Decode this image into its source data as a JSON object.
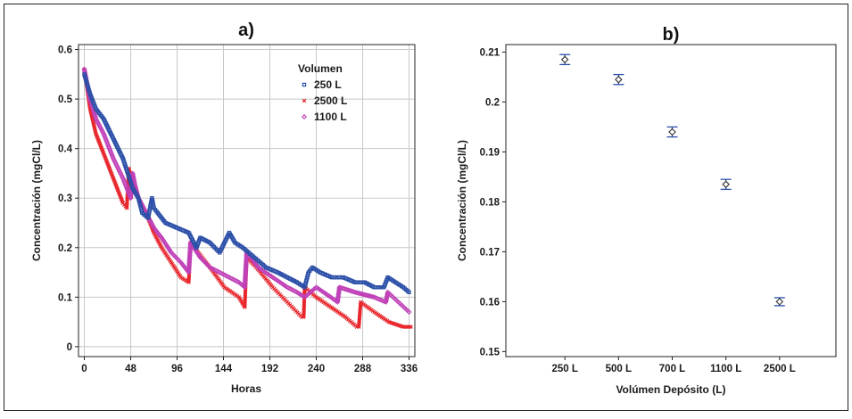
{
  "chart_data": [
    {
      "type": "scatter",
      "panel_title": "a)",
      "xlabel": "Horas",
      "ylabel": "Concentración (mgCl/L)",
      "xlim": [
        -6,
        342
      ],
      "ylim": [
        -0.02,
        0.61
      ],
      "xticks": [
        0,
        48,
        96,
        144,
        192,
        240,
        288,
        336
      ],
      "yticks": [
        0,
        0.1,
        0.2,
        0.3,
        0.4,
        0.5,
        0.6
      ],
      "ytick_labels": [
        "0",
        "0.1",
        "0.2",
        "0.3",
        "0.4",
        "0.5",
        "0.6"
      ],
      "grid": true,
      "legend_title": "Volumen",
      "legend_position": "top-right",
      "series": [
        {
          "name": "250 L",
          "color": "#2b4fa8",
          "marker": "square",
          "x": [
            0,
            6,
            12,
            20,
            30,
            40,
            50,
            56,
            60,
            66,
            70,
            72,
            76,
            84,
            96,
            108,
            116,
            120,
            130,
            140,
            150,
            156,
            164,
            176,
            188,
            200,
            210,
            220,
            228,
            232,
            236,
            244,
            256,
            268,
            280,
            290,
            300,
            310,
            314,
            322,
            330,
            336
          ],
          "y": [
            0.55,
            0.51,
            0.48,
            0.46,
            0.42,
            0.38,
            0.32,
            0.3,
            0.27,
            0.26,
            0.3,
            0.28,
            0.27,
            0.25,
            0.24,
            0.23,
            0.2,
            0.22,
            0.21,
            0.19,
            0.23,
            0.21,
            0.2,
            0.18,
            0.16,
            0.15,
            0.14,
            0.13,
            0.12,
            0.15,
            0.16,
            0.15,
            0.14,
            0.14,
            0.13,
            0.13,
            0.12,
            0.12,
            0.14,
            0.13,
            0.12,
            0.11
          ]
        },
        {
          "name": "2500 L",
          "color": "#e8262c",
          "marker": "x",
          "x": [
            0,
            6,
            12,
            20,
            30,
            40,
            44,
            46,
            50,
            56,
            64,
            72,
            80,
            90,
            100,
            108,
            110,
            118,
            130,
            145,
            160,
            166,
            168,
            178,
            195,
            210,
            225,
            227,
            228,
            240,
            255,
            270,
            282,
            284,
            286,
            300,
            315,
            330,
            338
          ],
          "y": [
            0.56,
            0.48,
            0.43,
            0.39,
            0.34,
            0.29,
            0.28,
            0.36,
            0.33,
            0.3,
            0.27,
            0.23,
            0.2,
            0.17,
            0.14,
            0.13,
            0.21,
            0.19,
            0.16,
            0.12,
            0.1,
            0.08,
            0.18,
            0.16,
            0.12,
            0.09,
            0.06,
            0.06,
            0.12,
            0.1,
            0.08,
            0.06,
            0.04,
            0.04,
            0.09,
            0.07,
            0.05,
            0.04,
            0.04
          ]
        },
        {
          "name": "1100 L",
          "color": "#c040b8",
          "marker": "diamond",
          "x": [
            0,
            6,
            12,
            20,
            30,
            40,
            48,
            50,
            52,
            56,
            64,
            72,
            80,
            90,
            100,
            108,
            110,
            120,
            130,
            140,
            160,
            166,
            168,
            180,
            195,
            210,
            220,
            228,
            240,
            255,
            262,
            264,
            280,
            300,
            312,
            314,
            325,
            336
          ],
          "y": [
            0.56,
            0.5,
            0.46,
            0.43,
            0.38,
            0.34,
            0.3,
            0.35,
            0.33,
            0.3,
            0.27,
            0.24,
            0.22,
            0.19,
            0.17,
            0.15,
            0.21,
            0.18,
            0.16,
            0.15,
            0.13,
            0.12,
            0.19,
            0.16,
            0.14,
            0.12,
            0.11,
            0.1,
            0.12,
            0.1,
            0.09,
            0.12,
            0.11,
            0.1,
            0.09,
            0.11,
            0.09,
            0.07
          ]
        }
      ]
    },
    {
      "type": "errorbar",
      "panel_title": "b)",
      "xlabel": "Volúmen Depósito (L)",
      "ylabel": "Concentración (mgCl/L)",
      "ylim": [
        0.149,
        0.2115
      ],
      "yticks": [
        0.15,
        0.16,
        0.17,
        0.18,
        0.19,
        0.2,
        0.21
      ],
      "ytick_labels": [
        "0.15",
        "0.16",
        "0.17",
        "0.18",
        "0.19",
        "0.2",
        "0.21"
      ],
      "grid": false,
      "categories": [
        "250 L",
        "500 L",
        "700 L",
        "1100 L",
        "2500 L"
      ],
      "values": [
        0.2085,
        0.2045,
        0.194,
        0.1835,
        0.16
      ],
      "errors": [
        0.001,
        0.001,
        0.001,
        0.001,
        0.0008
      ],
      "color": "#2b4fa8",
      "marker_color": "#333333",
      "marker": "diamond"
    }
  ]
}
